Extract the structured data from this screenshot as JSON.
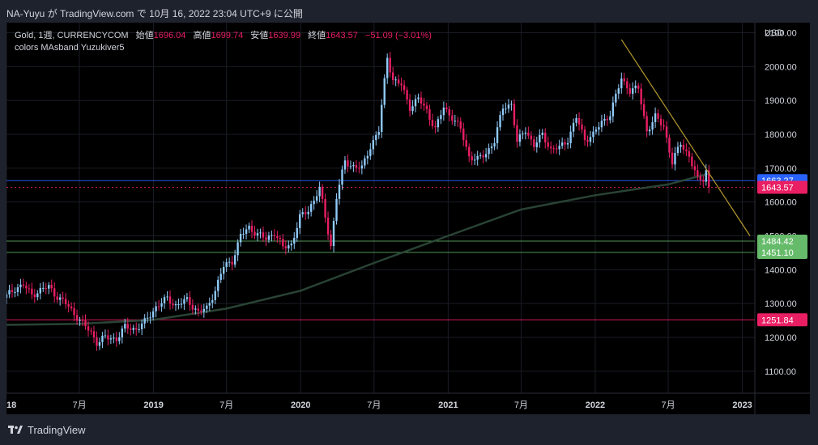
{
  "header": {
    "caption": "NA-Yuyu が TradingView.com で 10月 16, 2022 23:04 UTC+9 に公開"
  },
  "legend": {
    "symbol": "Gold, 1週, CURRENCYCOM",
    "open_label": "始値",
    "open": "1696.04",
    "high_label": "高値",
    "high": "1699.74",
    "low_label": "安値",
    "low": "1639.99",
    "close_label": "終値",
    "close": "1643.57",
    "change": "−51.09 (−3.01%)",
    "indicator": "colors MAsband Yuzukiver5"
  },
  "footer": {
    "brand": "TradingView"
  },
  "colors": {
    "up": "#90caf9",
    "down": "#e91e63",
    "ma": "#2e4a3a",
    "trend": "#b59a2e",
    "support": "#66bb6a",
    "blue": "#2962ff",
    "pink": "#e91e63"
  },
  "chart_data": {
    "type": "candlestick",
    "title": "Gold, 1週, CURRENCYCOM",
    "currency": "USD",
    "ylim": [
      1035,
      2130
    ],
    "y_ticks": [
      {
        "v": 1100,
        "label": "1100.00"
      },
      {
        "v": 1200,
        "label": "1200.00"
      },
      {
        "v": 1300,
        "label": "1300.00"
      },
      {
        "v": 1400,
        "label": "1400.00"
      },
      {
        "v": 1500,
        "label": "1500.00"
      },
      {
        "v": 1600,
        "label": "1600.00"
      },
      {
        "v": 1700,
        "label": "1700.00"
      },
      {
        "v": 1800,
        "label": "1800.00"
      },
      {
        "v": 1900,
        "label": "1900.00"
      },
      {
        "v": 2000,
        "label": "2000.00"
      },
      {
        "v": 2100,
        "label": "2100.00"
      }
    ],
    "x_range": [
      "2018-01-01",
      "2023-02-01"
    ],
    "x_ticks": [
      {
        "t": "2018-01-01",
        "label": "2018",
        "bold": true
      },
      {
        "t": "2018-07-01",
        "label": "7月",
        "bold": false
      },
      {
        "t": "2019-01-01",
        "label": "2019",
        "bold": true
      },
      {
        "t": "2019-07-01",
        "label": "7月",
        "bold": false
      },
      {
        "t": "2020-01-01",
        "label": "2020",
        "bold": true
      },
      {
        "t": "2020-07-01",
        "label": "7月",
        "bold": false
      },
      {
        "t": "2021-01-01",
        "label": "2021",
        "bold": true
      },
      {
        "t": "2021-07-01",
        "label": "7月",
        "bold": false
      },
      {
        "t": "2022-01-01",
        "label": "2022",
        "bold": true
      },
      {
        "t": "2022-07-01",
        "label": "7月",
        "bold": false
      },
      {
        "t": "2023-01-01",
        "label": "2023",
        "bold": true
      }
    ],
    "closes": [
      [
        "2018-01-01",
        1322
      ],
      [
        "2018-01-22",
        1345
      ],
      [
        "2018-02-12",
        1355
      ],
      [
        "2018-03-05",
        1325
      ],
      [
        "2018-03-26",
        1340
      ],
      [
        "2018-04-16",
        1350
      ],
      [
        "2018-05-07",
        1320
      ],
      [
        "2018-05-28",
        1300
      ],
      [
        "2018-06-18",
        1270
      ],
      [
        "2018-07-09",
        1240
      ],
      [
        "2018-07-30",
        1215
      ],
      [
        "2018-08-13",
        1185
      ],
      [
        "2018-09-03",
        1200
      ],
      [
        "2018-10-01",
        1195
      ],
      [
        "2018-10-22",
        1230
      ],
      [
        "2018-11-19",
        1225
      ],
      [
        "2018-12-10",
        1245
      ],
      [
        "2019-01-07",
        1290
      ],
      [
        "2019-02-04",
        1315
      ],
      [
        "2019-02-25",
        1295
      ],
      [
        "2019-03-25",
        1310
      ],
      [
        "2019-04-22",
        1275
      ],
      [
        "2019-05-13",
        1285
      ],
      [
        "2019-06-03",
        1340
      ],
      [
        "2019-06-24",
        1410
      ],
      [
        "2019-07-15",
        1425
      ],
      [
        "2019-08-05",
        1500
      ],
      [
        "2019-08-26",
        1525
      ],
      [
        "2019-09-16",
        1505
      ],
      [
        "2019-10-07",
        1490
      ],
      [
        "2019-10-28",
        1510
      ],
      [
        "2019-11-18",
        1465
      ],
      [
        "2019-12-09",
        1475
      ],
      [
        "2019-12-30",
        1555
      ],
      [
        "2020-01-20",
        1575
      ],
      [
        "2020-02-17",
        1640
      ],
      [
        "2020-03-16",
        1470
      ],
      [
        "2020-03-30",
        1615
      ],
      [
        "2020-04-20",
        1720
      ],
      [
        "2020-05-11",
        1705
      ],
      [
        "2020-06-01",
        1700
      ],
      [
        "2020-06-22",
        1765
      ],
      [
        "2020-07-13",
        1810
      ],
      [
        "2020-08-03",
        2030
      ],
      [
        "2020-08-17",
        1960
      ],
      [
        "2020-09-07",
        1945
      ],
      [
        "2020-09-28",
        1880
      ],
      [
        "2020-10-19",
        1905
      ],
      [
        "2020-11-09",
        1870
      ],
      [
        "2020-11-30",
        1815
      ],
      [
        "2020-12-21",
        1880
      ],
      [
        "2021-01-11",
        1850
      ],
      [
        "2021-02-01",
        1815
      ],
      [
        "2021-02-22",
        1735
      ],
      [
        "2021-03-15",
        1725
      ],
      [
        "2021-04-05",
        1745
      ],
      [
        "2021-04-26",
        1780
      ],
      [
        "2021-05-17",
        1880
      ],
      [
        "2021-06-07",
        1890
      ],
      [
        "2021-06-21",
        1775
      ],
      [
        "2021-07-12",
        1815
      ],
      [
        "2021-08-02",
        1765
      ],
      [
        "2021-08-23",
        1800
      ],
      [
        "2021-09-13",
        1755
      ],
      [
        "2021-10-04",
        1760
      ],
      [
        "2021-10-25",
        1785
      ],
      [
        "2021-11-15",
        1850
      ],
      [
        "2021-12-06",
        1785
      ],
      [
        "2021-12-27",
        1800
      ],
      [
        "2022-01-17",
        1835
      ],
      [
        "2022-02-07",
        1860
      ],
      [
        "2022-03-07",
        1965
      ],
      [
        "2022-03-28",
        1930
      ],
      [
        "2022-04-18",
        1935
      ],
      [
        "2022-05-09",
        1810
      ],
      [
        "2022-05-30",
        1850
      ],
      [
        "2022-06-20",
        1825
      ],
      [
        "2022-07-11",
        1715
      ],
      [
        "2022-08-01",
        1775
      ],
      [
        "2022-08-22",
        1735
      ],
      [
        "2022-09-12",
        1665
      ],
      [
        "2022-09-26",
        1670
      ],
      [
        "2022-10-03",
        1695
      ],
      [
        "2022-10-10",
        1644
      ]
    ],
    "series": [
      {
        "name": "colors MAsband Yuzukiver5",
        "values": [
          [
            "2018-01-01",
            1237
          ],
          [
            "2018-07-01",
            1240
          ],
          [
            "2019-01-01",
            1252
          ],
          [
            "2019-07-01",
            1285
          ],
          [
            "2020-01-01",
            1338
          ],
          [
            "2020-07-01",
            1420
          ],
          [
            "2021-01-01",
            1500
          ],
          [
            "2021-07-01",
            1578
          ],
          [
            "2022-01-01",
            1620
          ],
          [
            "2022-07-01",
            1652
          ],
          [
            "2022-10-10",
            1684
          ]
        ]
      }
    ],
    "trendline": [
      [
        "2022-03-07",
        2080
      ],
      [
        "2023-01-20",
        1500
      ]
    ],
    "price_labels": [
      {
        "value": 1663.27,
        "label": "1663.27",
        "style": "blue"
      },
      {
        "value": 1643.57,
        "label": "1643.57",
        "style": "pink"
      },
      {
        "value": 1484.42,
        "label": "1484.42",
        "style": "support"
      },
      {
        "value": 1451.1,
        "label": "1451.10",
        "style": "support"
      },
      {
        "value": 1251.84,
        "label": "1251.84",
        "style": "pink"
      }
    ]
  }
}
